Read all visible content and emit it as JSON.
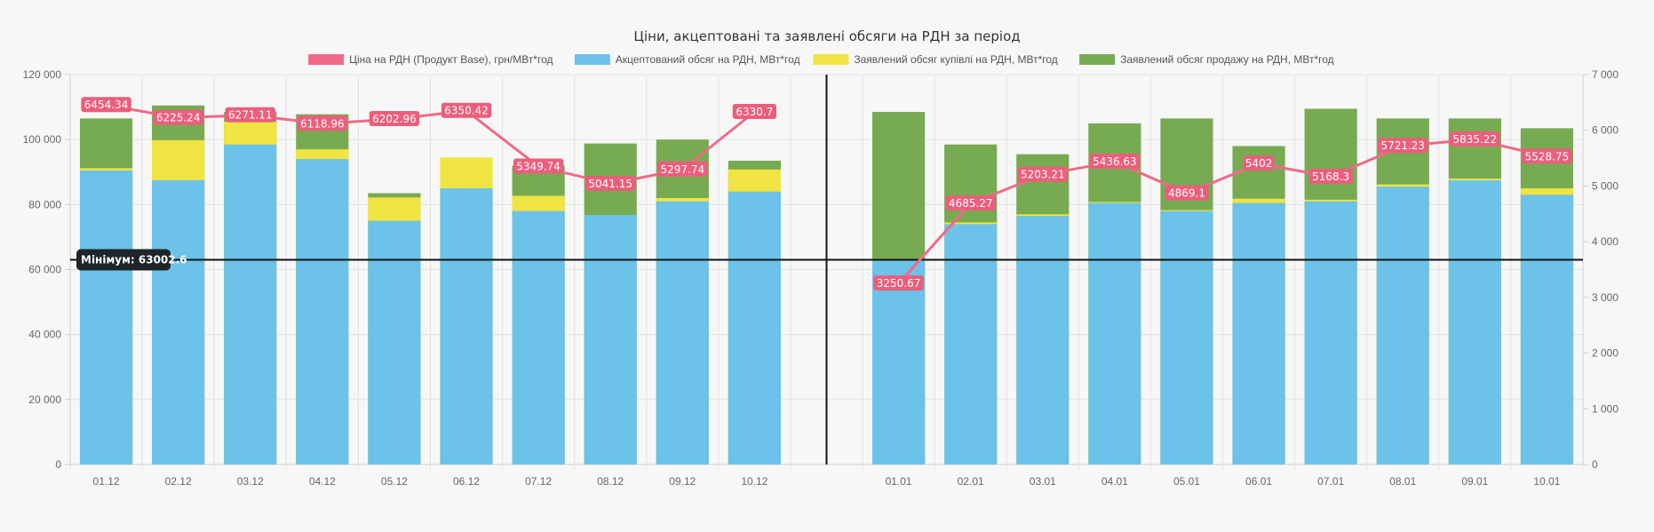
{
  "chart_data": {
    "type": "bar",
    "title": "Ціни, акцептовані та заявлені обсяги на РДН за період",
    "categories": [
      "01.12",
      "02.12",
      "03.12",
      "04.12",
      "05.12",
      "06.12",
      "07.12",
      "08.12",
      "09.12",
      "10.12",
      "",
      "01.01",
      "02.01",
      "03.01",
      "04.01",
      "05.01",
      "06.01",
      "07.01",
      "08.01",
      "09.01",
      "10.01"
    ],
    "series": [
      {
        "name": "Ціна на РДН (Продукт Base), грн/МВт*год",
        "kind": "line",
        "axis": "right",
        "values": [
          6454.34,
          6225.24,
          6271.11,
          6118.96,
          6202.96,
          6350.42,
          5349.74,
          5041.15,
          5297.74,
          6330.7,
          null,
          3250.67,
          4685.27,
          5203.21,
          5436.63,
          4869.1,
          5402,
          5168.3,
          5721.23,
          5835.22,
          5528.75
        ],
        "labels": [
          "6454.34",
          "6225.24",
          "6271.11",
          "6118.96",
          "6202.96",
          "6350.42",
          "5349.74",
          "5041.15",
          "5297.74",
          "6330.7",
          "",
          "3250.67",
          "4685.27",
          "5203.21",
          "5436.63",
          "4869.1",
          "5402",
          "5168.3",
          "5721.23",
          "5835.22",
          "5528.75"
        ]
      },
      {
        "name": "Акцептований обсяг на РДН, МВт*год",
        "kind": "bar",
        "axis": "left",
        "values": [
          90500,
          87500,
          98500,
          94000,
          75000,
          85000,
          78000,
          76800,
          81000,
          84000,
          null,
          63002.6,
          74000,
          76500,
          80500,
          78000,
          80500,
          81000,
          85500,
          87500,
          83000
        ]
      },
      {
        "name": "Заявлений обсяг купівлі на РДН, МВт*год",
        "kind": "bar",
        "axis": "left",
        "values": [
          91200,
          99800,
          105500,
          97000,
          82200,
          94500,
          82700,
          null,
          82000,
          90800,
          null,
          null,
          74500,
          77000,
          80800,
          78300,
          81800,
          81500,
          86200,
          88000,
          85000
        ]
      },
      {
        "name": "Заявлений обсяг продажу на РДН, МВт*год",
        "kind": "bar",
        "axis": "left",
        "values": [
          106500,
          110500,
          108500,
          107800,
          83500,
          null,
          92000,
          98800,
          100000,
          93500,
          null,
          108500,
          98500,
          95500,
          105000,
          106500,
          98000,
          109500,
          106500,
          106500,
          103500
        ]
      }
    ],
    "y_left": {
      "min": 0,
      "max": 120000,
      "ticks": [
        "0",
        "20 000",
        "40 000",
        "60 000",
        "80 000",
        "100 000",
        "120 000"
      ]
    },
    "y_right": {
      "min": 0,
      "max": 7000,
      "ticks": [
        "0",
        "1 000",
        "2 000",
        "3 000",
        "4 000",
        "5 000",
        "6 000",
        "7 000"
      ]
    },
    "min_line": {
      "value": 63002.6,
      "label": "Мінімум: 63002.6"
    },
    "divider_after_category": "10.12",
    "grid": true,
    "legend_position": "top",
    "colors": {
      "price": "#f06a87",
      "accepted": "#6cc2e8",
      "buy": "#f0e442",
      "sell": "#77ab52",
      "min_line": "#111111",
      "label_bg": "#eb5e7c"
    }
  }
}
